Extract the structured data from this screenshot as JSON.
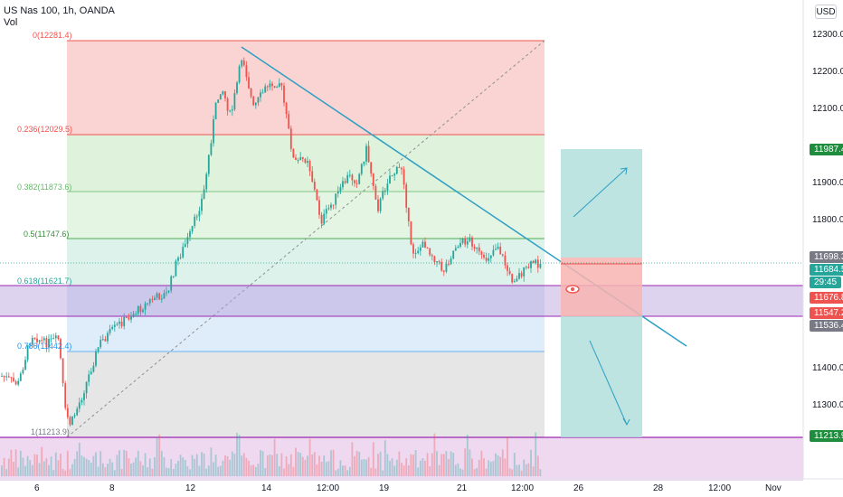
{
  "header": {
    "title": "US Nas 100, 1h, OANDA",
    "indicator": "Vol"
  },
  "currency_button": "USD",
  "price_axis": {
    "ticks": [
      "12300.0",
      "12200.0",
      "12100.0",
      "11900.0",
      "11800.0",
      "11400.0",
      "11300.0"
    ],
    "labels": [
      {
        "text": "11987.4",
        "color": "#1e8e3e"
      },
      {
        "text": "11698.3",
        "color": "#787b86"
      },
      {
        "text": "11684.5",
        "color": "#26a69a"
      },
      {
        "text": "29:45",
        "color": "#26a69a"
      },
      {
        "text": "11676.8",
        "color": "#ef5350"
      },
      {
        "text": "11547.2",
        "color": "#ef5350"
      },
      {
        "text": "11536.4",
        "color": "#787b86"
      },
      {
        "text": "11213.9",
        "color": "#1e8e3e"
      }
    ]
  },
  "time_axis": {
    "ticks": [
      "6",
      "8",
      "12",
      "14",
      "12:00",
      "19",
      "21",
      "12:00",
      "26",
      "28",
      "12:00",
      "Nov"
    ]
  },
  "fibonacci": [
    {
      "label": "0(12281.4)",
      "color": "#ef5350"
    },
    {
      "label": "0.236(12029.5)",
      "color": "#ef5350"
    },
    {
      "label": "0.382(11873.6)",
      "color": "#4caf50"
    },
    {
      "label": "0.5(11747.6)",
      "color": "#388e3c"
    },
    {
      "label": "0.618(11621.7)",
      "color": "#26a69a"
    },
    {
      "label": "0.786(11442.4)",
      "color": "#2196f3"
    },
    {
      "label": "1(11213.9)",
      "color": "#787b86"
    }
  ],
  "colors": {
    "up": "#26a69a",
    "down": "#ef5350",
    "trendline": "#2e9fc4",
    "zone": "#9c27b0"
  }
}
